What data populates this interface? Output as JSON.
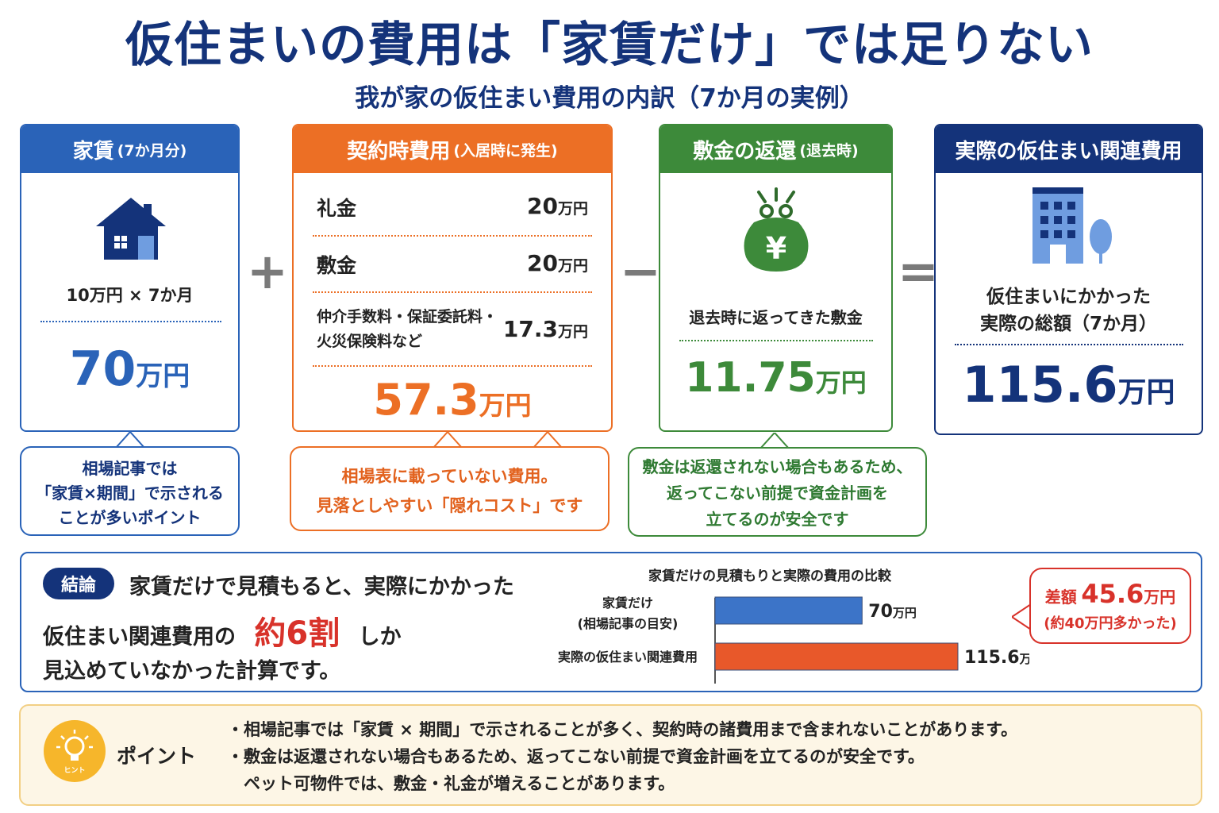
{
  "title": "仮住まいの費用は「家賃だけ」では足りない",
  "subtitle": "我が家の仮住まい費用の内訳（7か月の実例）",
  "colors": {
    "navy": "#14337a",
    "blue": "#2a63b8",
    "orange": "#ec6f25",
    "green": "#3d8a3a",
    "red": "#d8322a"
  },
  "operators": {
    "plus": "+",
    "minus": "−",
    "equals": "="
  },
  "rent": {
    "header": "家賃",
    "header_note": "(7か月分)",
    "icon": "house-icon",
    "formula": "10万円 × 7か月",
    "value": "70",
    "unit": "万円",
    "note_lines": [
      "相場記事では",
      "「家賃×期間」で示される",
      "ことが多いポイント"
    ]
  },
  "contract": {
    "header": "契約時費用",
    "header_note": "(入居時に発生)",
    "items": [
      {
        "label": "礼金",
        "value": "20",
        "unit": "万円"
      },
      {
        "label": "敷金",
        "value": "20",
        "unit": "万円"
      }
    ],
    "misc_label_lines": [
      "仲介手数料・保証委託料・",
      "火災保険料など"
    ],
    "misc_value": "17.3",
    "misc_unit": "万円",
    "total": "57.3",
    "unit": "万円",
    "note_lines": [
      "相場表に載っていない費用。",
      "見落としやすい「隠れコスト」です"
    ]
  },
  "deposit": {
    "header": "敷金の返還",
    "header_note": "(退去時)",
    "icon": "purse-yen-icon",
    "label": "退去時に返ってきた敷金",
    "value": "11.75",
    "unit": "万円",
    "note_lines": [
      "敷金は返還されない場合もあるため、",
      "返ってこない前提で資金計画を",
      "立てるのが安全です"
    ]
  },
  "actual": {
    "header": "実際の仮住まい関連費用",
    "icon": "building-icon",
    "label_lines": [
      "仮住まいにかかった",
      "実際の総額（7か月）"
    ],
    "value": "115.6",
    "unit": "万円"
  },
  "conclusion": {
    "badge": "結論",
    "line1": "家賃だけで見積もると、実際にかかった",
    "line2_pre": "仮住まい関連費用の",
    "line2_highlight": "約6割",
    "line2_post": "しか",
    "line3": "見込めていなかった計算です。"
  },
  "chart_data": {
    "type": "bar",
    "orientation": "horizontal",
    "title": "家賃だけの見積もりと実際の費用の比較",
    "categories": [
      "家賃だけ\n(相場記事の目安)",
      "実際の仮住まい関連費用"
    ],
    "category_lines": [
      [
        "家賃だけ",
        "(相場記事の目安)"
      ],
      [
        "実際の仮住まい関連費用"
      ]
    ],
    "values": [
      70,
      115.6
    ],
    "value_labels": [
      "70",
      "115.6"
    ],
    "unit": "万円",
    "colors": [
      "#3c74c8",
      "#e8582a"
    ],
    "grid": false
  },
  "difference": {
    "label": "差額",
    "value": "45.6",
    "unit": "万円",
    "note": "(約40万円多かった)"
  },
  "point": {
    "icon": "lightbulb-icon",
    "icon_text": "ヒント",
    "label": "ポイント",
    "lines": [
      "・相場記事では「家賃 × 期間」で示されることが多く、契約時の諸費用まで含まれないことがあります。",
      "・敷金は返還されない場合もあるため、返ってこない前提で資金計画を立てるのが安全です。",
      "　ペット可物件では、敷金・礼金が増えることがあります。"
    ]
  }
}
